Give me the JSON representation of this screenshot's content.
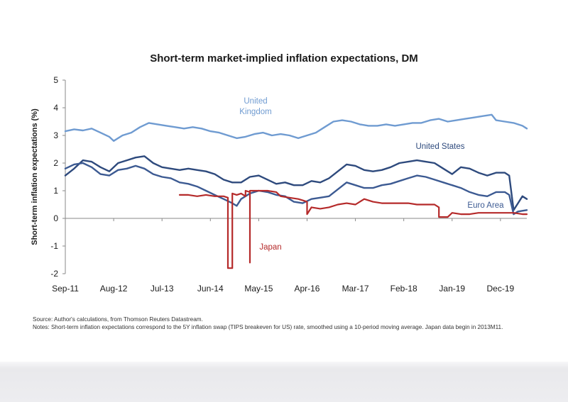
{
  "chart_data": {
    "type": "line",
    "title": "Short-term market-implied inflation expectations, DM",
    "xlabel": "",
    "ylabel": "Short-term inflation expectations (%)",
    "ylim": [
      -2,
      5
    ],
    "yticks": [
      "-2",
      "-1",
      "0",
      "1",
      "2",
      "3",
      "4",
      "5"
    ],
    "xlim": [
      "2011-09",
      "2020-06"
    ],
    "xticks": [
      {
        "label": "Sep-11",
        "date": "2011-09"
      },
      {
        "label": "Aug-12",
        "date": "2012-08"
      },
      {
        "label": "Jul-13",
        "date": "2013-07"
      },
      {
        "label": "Jun-14",
        "date": "2014-06"
      },
      {
        "label": "May-15",
        "date": "2015-05"
      },
      {
        "label": "Apr-16",
        "date": "2016-04"
      },
      {
        "label": "Mar-17",
        "date": "2017-03"
      },
      {
        "label": "Feb-18",
        "date": "2018-02"
      },
      {
        "label": "Jan-19",
        "date": "2019-01"
      },
      {
        "label": "Dec-19",
        "date": "2019-12"
      }
    ],
    "grid": false,
    "legend": "inline",
    "series": [
      {
        "name": "United Kingdom",
        "label_lines": [
          "United",
          "Kingdom"
        ],
        "color": "#6f9bd1",
        "points": [
          [
            "2011-09",
            3.15
          ],
          [
            "2011-11",
            3.22
          ],
          [
            "2012-01",
            3.18
          ],
          [
            "2012-03",
            3.25
          ],
          [
            "2012-05",
            3.1
          ],
          [
            "2012-07",
            2.95
          ],
          [
            "2012-08",
            2.8
          ],
          [
            "2012-10",
            3.0
          ],
          [
            "2012-12",
            3.1
          ],
          [
            "2013-02",
            3.3
          ],
          [
            "2013-04",
            3.45
          ],
          [
            "2013-06",
            3.4
          ],
          [
            "2013-08",
            3.35
          ],
          [
            "2013-10",
            3.3
          ],
          [
            "2013-12",
            3.25
          ],
          [
            "2014-02",
            3.3
          ],
          [
            "2014-04",
            3.25
          ],
          [
            "2014-06",
            3.15
          ],
          [
            "2014-08",
            3.1
          ],
          [
            "2014-10",
            3.0
          ],
          [
            "2014-12",
            2.9
          ],
          [
            "2015-02",
            2.95
          ],
          [
            "2015-04",
            3.05
          ],
          [
            "2015-06",
            3.1
          ],
          [
            "2015-08",
            3.0
          ],
          [
            "2015-10",
            3.05
          ],
          [
            "2015-12",
            3.0
          ],
          [
            "2016-02",
            2.9
          ],
          [
            "2016-04",
            3.0
          ],
          [
            "2016-06",
            3.1
          ],
          [
            "2016-08",
            3.3
          ],
          [
            "2016-10",
            3.5
          ],
          [
            "2016-12",
            3.55
          ],
          [
            "2017-02",
            3.5
          ],
          [
            "2017-04",
            3.4
          ],
          [
            "2017-06",
            3.35
          ],
          [
            "2017-08",
            3.35
          ],
          [
            "2017-10",
            3.4
          ],
          [
            "2017-12",
            3.35
          ],
          [
            "2018-02",
            3.4
          ],
          [
            "2018-04",
            3.45
          ],
          [
            "2018-06",
            3.45
          ],
          [
            "2018-08",
            3.55
          ],
          [
            "2018-10",
            3.6
          ],
          [
            "2018-12",
            3.5
          ],
          [
            "2019-02",
            3.55
          ],
          [
            "2019-04",
            3.6
          ],
          [
            "2019-06",
            3.65
          ],
          [
            "2019-08",
            3.7
          ],
          [
            "2019-10",
            3.75
          ],
          [
            "2019-11",
            3.55
          ],
          [
            "2020-01",
            3.5
          ],
          [
            "2020-03",
            3.45
          ],
          [
            "2020-05",
            3.35
          ],
          [
            "2020-06",
            3.25
          ]
        ]
      },
      {
        "name": "United States",
        "label_lines": [
          "United States"
        ],
        "color": "#2e4a7d",
        "points": [
          [
            "2011-09",
            1.55
          ],
          [
            "2011-11",
            1.8
          ],
          [
            "2012-01",
            2.1
          ],
          [
            "2012-03",
            2.05
          ],
          [
            "2012-05",
            1.85
          ],
          [
            "2012-07",
            1.7
          ],
          [
            "2012-09",
            2.0
          ],
          [
            "2012-11",
            2.1
          ],
          [
            "2013-01",
            2.2
          ],
          [
            "2013-03",
            2.25
          ],
          [
            "2013-05",
            2.0
          ],
          [
            "2013-07",
            1.85
          ],
          [
            "2013-09",
            1.8
          ],
          [
            "2013-11",
            1.75
          ],
          [
            "2014-01",
            1.8
          ],
          [
            "2014-03",
            1.75
          ],
          [
            "2014-05",
            1.7
          ],
          [
            "2014-07",
            1.6
          ],
          [
            "2014-09",
            1.4
          ],
          [
            "2014-11",
            1.3
          ],
          [
            "2015-01",
            1.3
          ],
          [
            "2015-03",
            1.5
          ],
          [
            "2015-05",
            1.55
          ],
          [
            "2015-07",
            1.4
          ],
          [
            "2015-09",
            1.25
          ],
          [
            "2015-11",
            1.3
          ],
          [
            "2016-01",
            1.2
          ],
          [
            "2016-03",
            1.2
          ],
          [
            "2016-05",
            1.35
          ],
          [
            "2016-07",
            1.3
          ],
          [
            "2016-09",
            1.45
          ],
          [
            "2016-11",
            1.7
          ],
          [
            "2017-01",
            1.95
          ],
          [
            "2017-03",
            1.9
          ],
          [
            "2017-05",
            1.75
          ],
          [
            "2017-07",
            1.7
          ],
          [
            "2017-09",
            1.75
          ],
          [
            "2017-11",
            1.85
          ],
          [
            "2018-01",
            2.0
          ],
          [
            "2018-03",
            2.05
          ],
          [
            "2018-05",
            2.1
          ],
          [
            "2018-07",
            2.05
          ],
          [
            "2018-09",
            2.0
          ],
          [
            "2018-11",
            1.8
          ],
          [
            "2019-01",
            1.6
          ],
          [
            "2019-03",
            1.85
          ],
          [
            "2019-05",
            1.8
          ],
          [
            "2019-07",
            1.65
          ],
          [
            "2019-09",
            1.55
          ],
          [
            "2019-11",
            1.65
          ],
          [
            "2020-01",
            1.65
          ],
          [
            "2020-02",
            1.55
          ],
          [
            "2020-03",
            0.3
          ],
          [
            "2020-04",
            0.55
          ],
          [
            "2020-05",
            0.8
          ],
          [
            "2020-06",
            0.7
          ]
        ]
      },
      {
        "name": "Euro Area",
        "label_lines": [
          "Euro Area"
        ],
        "color": "#3c5a92",
        "points": [
          [
            "2011-09",
            1.8
          ],
          [
            "2011-11",
            1.95
          ],
          [
            "2012-01",
            2.0
          ],
          [
            "2012-03",
            1.85
          ],
          [
            "2012-05",
            1.6
          ],
          [
            "2012-07",
            1.55
          ],
          [
            "2012-09",
            1.75
          ],
          [
            "2012-11",
            1.8
          ],
          [
            "2013-01",
            1.9
          ],
          [
            "2013-03",
            1.8
          ],
          [
            "2013-05",
            1.6
          ],
          [
            "2013-07",
            1.5
          ],
          [
            "2013-09",
            1.45
          ],
          [
            "2013-11",
            1.3
          ],
          [
            "2014-01",
            1.25
          ],
          [
            "2014-03",
            1.15
          ],
          [
            "2014-05",
            1.0
          ],
          [
            "2014-07",
            0.85
          ],
          [
            "2014-09",
            0.7
          ],
          [
            "2014-11",
            0.55
          ],
          [
            "2014-12",
            0.45
          ],
          [
            "2015-01",
            0.7
          ],
          [
            "2015-03",
            0.9
          ],
          [
            "2015-05",
            1.0
          ],
          [
            "2015-07",
            0.95
          ],
          [
            "2015-09",
            0.85
          ],
          [
            "2015-11",
            0.8
          ],
          [
            "2016-01",
            0.6
          ],
          [
            "2016-03",
            0.55
          ],
          [
            "2016-05",
            0.7
          ],
          [
            "2016-07",
            0.75
          ],
          [
            "2016-09",
            0.8
          ],
          [
            "2016-11",
            1.05
          ],
          [
            "2017-01",
            1.3
          ],
          [
            "2017-03",
            1.2
          ],
          [
            "2017-05",
            1.1
          ],
          [
            "2017-07",
            1.1
          ],
          [
            "2017-09",
            1.2
          ],
          [
            "2017-11",
            1.25
          ],
          [
            "2018-01",
            1.35
          ],
          [
            "2018-03",
            1.45
          ],
          [
            "2018-05",
            1.55
          ],
          [
            "2018-07",
            1.5
          ],
          [
            "2018-09",
            1.4
          ],
          [
            "2018-11",
            1.3
          ],
          [
            "2019-01",
            1.2
          ],
          [
            "2019-03",
            1.1
          ],
          [
            "2019-05",
            0.95
          ],
          [
            "2019-07",
            0.85
          ],
          [
            "2019-09",
            0.8
          ],
          [
            "2019-11",
            0.95
          ],
          [
            "2020-01",
            0.95
          ],
          [
            "2020-02",
            0.85
          ],
          [
            "2020-03",
            0.15
          ],
          [
            "2020-04",
            0.25
          ],
          [
            "2020-06",
            0.3
          ]
        ]
      },
      {
        "name": "Japan",
        "label_lines": [
          "Japan"
        ],
        "color": "#b52a2a",
        "points": [
          [
            "2013-11",
            0.85
          ],
          [
            "2014-01",
            0.85
          ],
          [
            "2014-03",
            0.8
          ],
          [
            "2014-05",
            0.85
          ],
          [
            "2014-07",
            0.8
          ],
          [
            "2014-09",
            0.8
          ],
          [
            "2014-10",
            0.75
          ],
          [
            "2014-10",
            -1.8
          ],
          [
            "2014-11",
            -1.8
          ],
          [
            "2014-11",
            0.9
          ],
          [
            "2014-12",
            0.85
          ],
          [
            "2015-01",
            0.9
          ],
          [
            "2015-02",
            0.8
          ],
          [
            "2015-02",
            1.0
          ],
          [
            "2015-03",
            0.95
          ],
          [
            "2015-03",
            -1.6
          ],
          [
            "2015-03",
            1.0
          ],
          [
            "2015-05",
            1.0
          ],
          [
            "2015-07",
            1.0
          ],
          [
            "2015-09",
            0.95
          ],
          [
            "2015-10",
            0.8
          ],
          [
            "2015-12",
            0.75
          ],
          [
            "2016-02",
            0.7
          ],
          [
            "2016-03",
            0.65
          ],
          [
            "2016-04",
            0.6
          ],
          [
            "2016-04",
            0.15
          ],
          [
            "2016-05",
            0.4
          ],
          [
            "2016-07",
            0.35
          ],
          [
            "2016-09",
            0.4
          ],
          [
            "2016-11",
            0.5
          ],
          [
            "2017-01",
            0.55
          ],
          [
            "2017-03",
            0.5
          ],
          [
            "2017-05",
            0.7
          ],
          [
            "2017-07",
            0.6
          ],
          [
            "2017-09",
            0.55
          ],
          [
            "2017-11",
            0.55
          ],
          [
            "2018-01",
            0.55
          ],
          [
            "2018-03",
            0.55
          ],
          [
            "2018-05",
            0.5
          ],
          [
            "2018-07",
            0.5
          ],
          [
            "2018-09",
            0.5
          ],
          [
            "2018-10",
            0.4
          ],
          [
            "2018-10",
            0.05
          ],
          [
            "2018-12",
            0.05
          ],
          [
            "2019-01",
            0.2
          ],
          [
            "2019-03",
            0.15
          ],
          [
            "2019-05",
            0.15
          ],
          [
            "2019-07",
            0.2
          ],
          [
            "2019-09",
            0.2
          ],
          [
            "2019-11",
            0.2
          ],
          [
            "2020-01",
            0.2
          ],
          [
            "2020-03",
            0.2
          ],
          [
            "2020-05",
            0.15
          ],
          [
            "2020-06",
            0.15
          ]
        ]
      }
    ]
  },
  "notes": {
    "source": "Source: Author's calculations, from Thomson Reuters Datastream.",
    "notes": "Notes: Short-term inflation expectations correspond to the 5Y inflation swap  (TIPS breakeven for US) rate, smoothed using a 10-period moving average. Japan data begin in 2013M11."
  }
}
